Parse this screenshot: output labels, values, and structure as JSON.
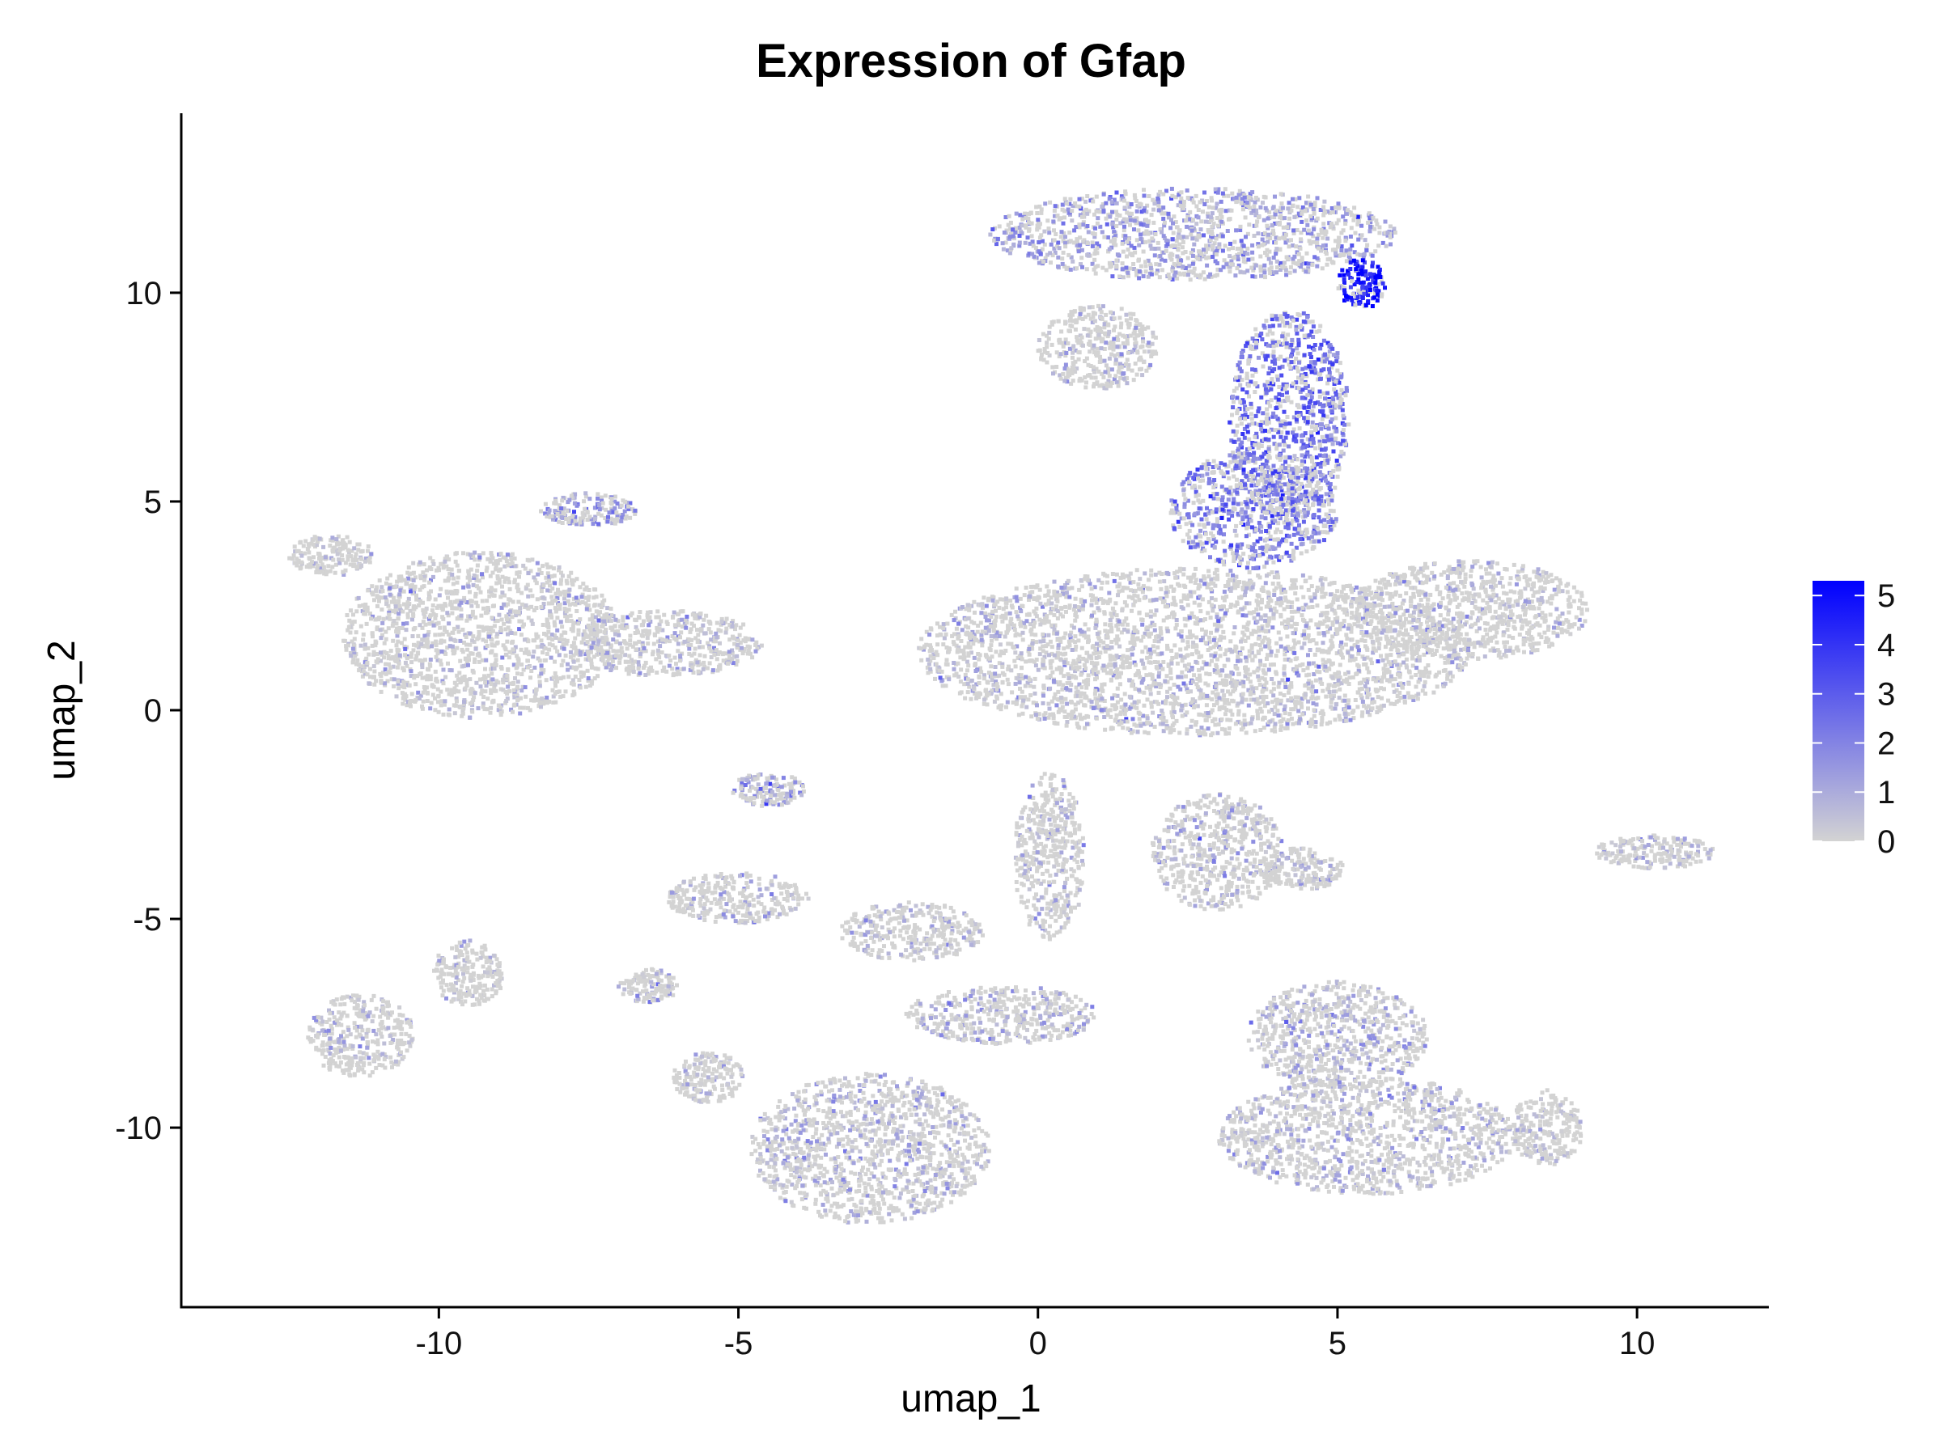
{
  "chart_data": {
    "type": "scatter",
    "title": "Expression of Gfap",
    "xlabel": "umap_1",
    "ylabel": "umap_2",
    "xlim": [
      -14.3,
      12.2
    ],
    "ylim": [
      -14.3,
      14.3
    ],
    "xticks": [
      -10,
      -5,
      0,
      5,
      10
    ],
    "yticks": [
      -10,
      -5,
      0,
      5,
      10
    ],
    "xtick_labels": [
      "-10",
      "-5",
      "0",
      "5",
      "10"
    ],
    "ytick_labels": [
      "-10",
      "-5",
      "0",
      "5",
      "10"
    ],
    "grid": false,
    "legend": {
      "placement": "right",
      "type": "colorbar",
      "range": [
        0,
        5.3
      ],
      "ticks": [
        0,
        1,
        2,
        3,
        4,
        5
      ],
      "tick_labels": [
        "0",
        "1",
        "2",
        "3",
        "4",
        "5"
      ],
      "low_color": "#d3d3d3",
      "high_color": "#0000ff"
    },
    "clusters": [
      {
        "cx": -9.3,
        "cy": 1.8,
        "rx": 2.3,
        "ry": 2.0,
        "expr": 0.3
      },
      {
        "cx": -11.8,
        "cy": 3.7,
        "rx": 0.7,
        "ry": 0.5,
        "expr": 0.2
      },
      {
        "cx": -6.2,
        "cy": 1.6,
        "rx": 1.6,
        "ry": 0.8,
        "expr": 0.4
      },
      {
        "cx": -7.5,
        "cy": 4.8,
        "rx": 0.8,
        "ry": 0.4,
        "expr": 1.5
      },
      {
        "cx": 2.6,
        "cy": 1.4,
        "rx": 4.6,
        "ry": 2.0,
        "expr": 0.5
      },
      {
        "cx": 2.6,
        "cy": 11.4,
        "rx": 3.4,
        "ry": 1.1,
        "expr": 1.4
      },
      {
        "cx": 1.0,
        "cy": 8.7,
        "rx": 1.0,
        "ry": 1.0,
        "expr": 0.3
      },
      {
        "cx": 4.2,
        "cy": 7.0,
        "rx": 1.0,
        "ry": 2.6,
        "expr": 2.6
      },
      {
        "cx": 3.6,
        "cy": 4.8,
        "rx": 1.4,
        "ry": 1.4,
        "expr": 2.2
      },
      {
        "cx": 5.4,
        "cy": 10.2,
        "rx": 0.4,
        "ry": 0.6,
        "expr": 4.8
      },
      {
        "cx": 7.2,
        "cy": 2.4,
        "rx": 2.0,
        "ry": 1.2,
        "expr": 0.3
      },
      {
        "cx": 3.0,
        "cy": -3.4,
        "rx": 1.1,
        "ry": 1.4,
        "expr": 0.5
      },
      {
        "cx": -5.0,
        "cy": -4.5,
        "rx": 1.2,
        "ry": 0.6,
        "expr": 0.4
      },
      {
        "cx": -2.1,
        "cy": -5.3,
        "rx": 1.2,
        "ry": 0.7,
        "expr": 0.5
      },
      {
        "cx": -11.3,
        "cy": -7.8,
        "rx": 0.9,
        "ry": 1.0,
        "expr": 0.4
      },
      {
        "cx": -9.5,
        "cy": -6.3,
        "rx": 0.6,
        "ry": 0.8,
        "expr": 0.1
      },
      {
        "cx": -2.8,
        "cy": -10.5,
        "rx": 2.0,
        "ry": 1.8,
        "expr": 0.6
      },
      {
        "cx": -5.5,
        "cy": -8.8,
        "rx": 0.6,
        "ry": 0.6,
        "expr": 0.4
      },
      {
        "cx": 5.5,
        "cy": -10.2,
        "rx": 2.5,
        "ry": 1.4,
        "expr": 0.5
      },
      {
        "cx": 5.0,
        "cy": -7.8,
        "rx": 1.5,
        "ry": 1.3,
        "expr": 0.7
      },
      {
        "cx": 10.3,
        "cy": -3.4,
        "rx": 1.0,
        "ry": 0.4,
        "expr": 0.3
      },
      {
        "cx": -6.5,
        "cy": -6.6,
        "rx": 0.5,
        "ry": 0.4,
        "expr": 0.3
      },
      {
        "cx": -4.5,
        "cy": -1.9,
        "rx": 0.6,
        "ry": 0.4,
        "expr": 1.4
      },
      {
        "cx": 0.2,
        "cy": -3.5,
        "rx": 0.6,
        "ry": 2.0,
        "expr": 0.3
      },
      {
        "cx": -0.6,
        "cy": -7.3,
        "rx": 1.6,
        "ry": 0.7,
        "expr": 0.6
      },
      {
        "cx": 8.5,
        "cy": -10.0,
        "rx": 0.6,
        "ry": 0.9,
        "expr": 0.2
      },
      {
        "cx": 4.4,
        "cy": -3.8,
        "rx": 0.7,
        "ry": 0.5,
        "expr": 0.5
      }
    ]
  }
}
